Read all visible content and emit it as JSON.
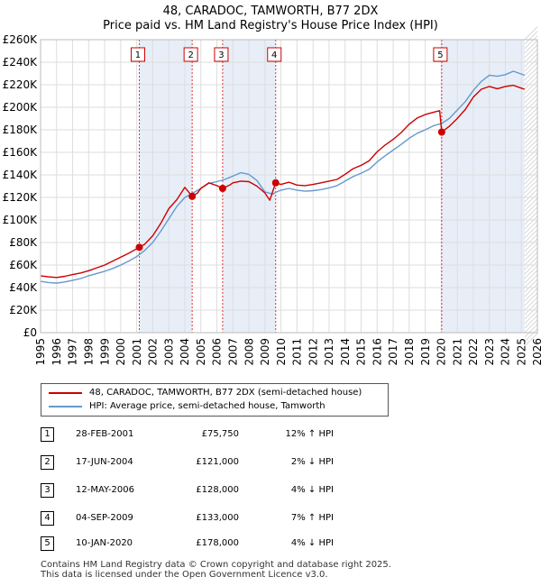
{
  "title_line1": "48, CARADOC, TAMWORTH, B77 2DX",
  "title_line2": "Price paid vs. HM Land Registry's House Price Index (HPI)",
  "legend": {
    "price": "48, CARADOC, TAMWORTH, B77 2DX (semi-detached house)",
    "hpi": "HPI: Average price, semi-detached house, Tamworth"
  },
  "colors": {
    "price": "#cc0000",
    "hpi": "#6699cc",
    "shade": "#e8eef8",
    "grid": "#dddddd"
  },
  "transactions": [
    {
      "num": "1",
      "date": "28-FEB-2001",
      "price": "£75,750",
      "hpi": "12% ↑ HPI"
    },
    {
      "num": "2",
      "date": "17-JUN-2004",
      "price": "£121,000",
      "hpi": "2% ↓ HPI"
    },
    {
      "num": "3",
      "date": "12-MAY-2006",
      "price": "£128,000",
      "hpi": "4% ↓ HPI"
    },
    {
      "num": "4",
      "date": "04-SEP-2009",
      "price": "£133,000",
      "hpi": "7% ↑ HPI"
    },
    {
      "num": "5",
      "date": "10-JAN-2020",
      "price": "£178,000",
      "hpi": "4% ↓ HPI"
    }
  ],
  "footer": {
    "line1": "Contains HM Land Registry data © Crown copyright and database right 2025.",
    "line2": "This data is licensed under the Open Government Licence v3.0."
  },
  "chart_data": {
    "type": "line",
    "title": "48, CARADOC, TAMWORTH, B77 2DX — Price paid vs. HM Land Registry's House Price Index (HPI)",
    "xlim": [
      1995,
      2026
    ],
    "ylim": [
      0,
      260000
    ],
    "x_ticks": [
      1995,
      1996,
      1997,
      1998,
      1999,
      2000,
      2001,
      2002,
      2003,
      2004,
      2005,
      2006,
      2007,
      2008,
      2009,
      2010,
      2011,
      2012,
      2013,
      2014,
      2015,
      2016,
      2017,
      2018,
      2019,
      2020,
      2021,
      2022,
      2023,
      2024,
      2025,
      2026
    ],
    "y_ticks": [
      0,
      20000,
      40000,
      60000,
      80000,
      100000,
      120000,
      140000,
      160000,
      180000,
      200000,
      220000,
      240000,
      260000
    ],
    "y_tick_labels": [
      "£0",
      "£20K",
      "£40K",
      "£60K",
      "£80K",
      "£100K",
      "£120K",
      "£140K",
      "£160K",
      "£180K",
      "£200K",
      "£220K",
      "£240K",
      "£260K"
    ],
    "forecast_from": 2025.2,
    "shaded_ranges": [
      [
        2001.16,
        2004.46
      ],
      [
        2006.36,
        2009.67
      ],
      [
        2020.03,
        2025.2
      ]
    ],
    "sales": [
      {
        "label": "1",
        "x": 2001.16,
        "y": 75750
      },
      {
        "label": "2",
        "x": 2004.46,
        "y": 121000
      },
      {
        "label": "3",
        "x": 2006.36,
        "y": 128000
      },
      {
        "label": "4",
        "x": 2009.67,
        "y": 133000
      },
      {
        "label": "5",
        "x": 2020.03,
        "y": 178000
      }
    ],
    "series": [
      {
        "name": "48, CARADOC, TAMWORTH, B77 2DX (semi-detached house)",
        "points": [
          [
            1995,
            50500
          ],
          [
            1995.5,
            49500
          ],
          [
            1996,
            49000
          ],
          [
            1996.5,
            50000
          ],
          [
            1997,
            51500
          ],
          [
            1997.5,
            53000
          ],
          [
            1998,
            55000
          ],
          [
            1998.5,
            57500
          ],
          [
            1999,
            60000
          ],
          [
            1999.5,
            63500
          ],
          [
            2000,
            67000
          ],
          [
            2000.5,
            70500
          ],
          [
            2001.16,
            75750
          ],
          [
            2001.5,
            78500
          ],
          [
            2002,
            86000
          ],
          [
            2002.5,
            97000
          ],
          [
            2003,
            110000
          ],
          [
            2003.5,
            118000
          ],
          [
            2004,
            129000
          ],
          [
            2004.46,
            121000
          ],
          [
            2004.8,
            124000
          ],
          [
            2005,
            128000
          ],
          [
            2005.5,
            133000
          ],
          [
            2006,
            130500
          ],
          [
            2006.36,
            128000
          ],
          [
            2006.8,
            131000
          ],
          [
            2007,
            133000
          ],
          [
            2007.5,
            134500
          ],
          [
            2008,
            134000
          ],
          [
            2008.5,
            130000
          ],
          [
            2009,
            124000
          ],
          [
            2009.3,
            117500
          ],
          [
            2009.67,
            133000
          ],
          [
            2010,
            131500
          ],
          [
            2010.5,
            133500
          ],
          [
            2011,
            131000
          ],
          [
            2011.5,
            130500
          ],
          [
            2012,
            131500
          ],
          [
            2012.5,
            133000
          ],
          [
            2013,
            134500
          ],
          [
            2013.5,
            136000
          ],
          [
            2014,
            140500
          ],
          [
            2014.5,
            145500
          ],
          [
            2015,
            148500
          ],
          [
            2015.5,
            152500
          ],
          [
            2016,
            160500
          ],
          [
            2016.5,
            166500
          ],
          [
            2017,
            171500
          ],
          [
            2017.5,
            177500
          ],
          [
            2018,
            185000
          ],
          [
            2018.5,
            190500
          ],
          [
            2019,
            193500
          ],
          [
            2019.5,
            195500
          ],
          [
            2019.9,
            197000
          ],
          [
            2020.03,
            178000
          ],
          [
            2020.5,
            183000
          ],
          [
            2021,
            190000
          ],
          [
            2021.5,
            198000
          ],
          [
            2022,
            209000
          ],
          [
            2022.5,
            216000
          ],
          [
            2023,
            218500
          ],
          [
            2023.5,
            216500
          ],
          [
            2024,
            218500
          ],
          [
            2024.5,
            219500
          ],
          [
            2025,
            217000
          ],
          [
            2025.2,
            216000
          ]
        ]
      },
      {
        "name": "HPI: Average price, semi-detached house, Tamworth",
        "points": [
          [
            1995,
            45500
          ],
          [
            1995.5,
            44500
          ],
          [
            1996,
            44000
          ],
          [
            1996.5,
            45000
          ],
          [
            1997,
            46500
          ],
          [
            1997.5,
            48000
          ],
          [
            1998,
            50500
          ],
          [
            1998.5,
            52500
          ],
          [
            1999,
            54500
          ],
          [
            1999.5,
            57000
          ],
          [
            2000,
            60000
          ],
          [
            2000.5,
            63500
          ],
          [
            2001,
            67500
          ],
          [
            2001.5,
            73000
          ],
          [
            2002,
            80000
          ],
          [
            2002.5,
            90000
          ],
          [
            2003,
            101000
          ],
          [
            2003.5,
            112000
          ],
          [
            2004,
            120000
          ],
          [
            2004.46,
            123500
          ],
          [
            2005,
            128000
          ],
          [
            2005.5,
            132500
          ],
          [
            2006,
            134000
          ],
          [
            2006.5,
            136000
          ],
          [
            2007,
            139000
          ],
          [
            2007.5,
            142000
          ],
          [
            2008,
            140500
          ],
          [
            2008.5,
            135000
          ],
          [
            2009,
            125000
          ],
          [
            2009.5,
            123000
          ],
          [
            2009.67,
            124500
          ],
          [
            2010,
            126500
          ],
          [
            2010.5,
            128000
          ],
          [
            2011,
            126500
          ],
          [
            2011.5,
            125500
          ],
          [
            2012,
            126000
          ],
          [
            2012.5,
            127000
          ],
          [
            2013,
            128500
          ],
          [
            2013.5,
            130500
          ],
          [
            2014,
            134500
          ],
          [
            2014.5,
            138500
          ],
          [
            2015,
            141500
          ],
          [
            2015.5,
            145000
          ],
          [
            2016,
            151500
          ],
          [
            2016.5,
            157000
          ],
          [
            2017,
            162000
          ],
          [
            2017.5,
            167000
          ],
          [
            2018,
            172500
          ],
          [
            2018.5,
            177000
          ],
          [
            2019,
            180000
          ],
          [
            2019.5,
            183500
          ],
          [
            2020,
            185500
          ],
          [
            2020.5,
            190000
          ],
          [
            2021,
            197500
          ],
          [
            2021.5,
            205000
          ],
          [
            2022,
            215000
          ],
          [
            2022.5,
            223000
          ],
          [
            2023,
            228500
          ],
          [
            2023.5,
            227500
          ],
          [
            2024,
            229000
          ],
          [
            2024.5,
            232000
          ],
          [
            2025,
            229500
          ],
          [
            2025.2,
            228500
          ]
        ]
      }
    ]
  }
}
